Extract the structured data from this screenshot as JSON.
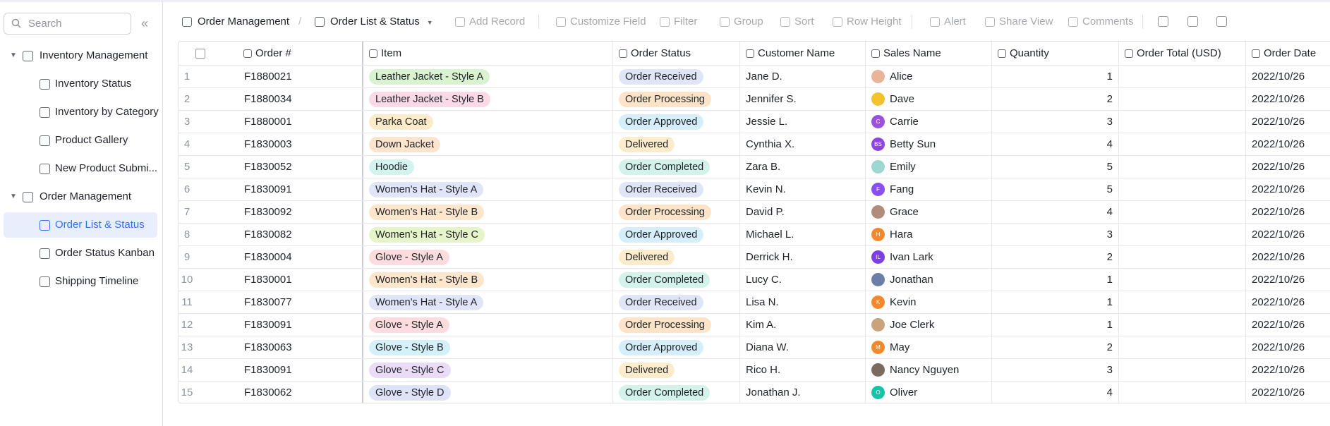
{
  "sidebar": {
    "search_placeholder": "Search",
    "tree": [
      {
        "label": "Inventory Management",
        "children": [
          {
            "label": "Inventory Status"
          },
          {
            "label": "Inventory by Category"
          },
          {
            "label": "Product Gallery"
          },
          {
            "label": "New Product Submi..."
          }
        ]
      },
      {
        "label": "Order Management",
        "children": [
          {
            "label": "Order List & Status",
            "active": true
          },
          {
            "label": "Order Status Kanban"
          },
          {
            "label": "Shipping Timeline"
          }
        ]
      }
    ]
  },
  "toolbar": {
    "breadcrumb": [
      "Order Management",
      "/"
    ],
    "view": "Order List & Status",
    "actions": [
      "Add Record",
      "Customize Field",
      "Filter",
      "Group",
      "Sort",
      "Row Height",
      "Alert",
      "Share View",
      "Comments"
    ]
  },
  "table": {
    "columns": [
      "Order #",
      "Item",
      "Order Status",
      "Customer Name",
      "Sales Name",
      "Quantity",
      "Order Total (USD)",
      "Order Date"
    ],
    "rows": [
      {
        "no": 1,
        "order": "F1880021",
        "item": {
          "label": "Leather Jacket - Style A",
          "color": "#d9f2d0"
        },
        "status": {
          "label": "Order Received",
          "color": "#e1e6f6"
        },
        "customer": "Jane D.",
        "sales": {
          "name": "Alice",
          "color": "#e8b49a"
        },
        "quantity": 1,
        "date": "2022/10/26"
      },
      {
        "no": 2,
        "order": "F1880034",
        "item": {
          "label": "Leather Jacket - Style B",
          "color": "#fbd9e6"
        },
        "status": {
          "label": "Order Processing",
          "color": "#fde3c8"
        },
        "customer": "Jennifer S.",
        "sales": {
          "name": "Dave",
          "color": "#f2c230"
        },
        "quantity": 2,
        "date": "2022/10/26"
      },
      {
        "no": 3,
        "order": "F1880001",
        "item": {
          "label": "Parka Coat",
          "color": "#fcebc9"
        },
        "status": {
          "label": "Order Approved",
          "color": "#d6eefa"
        },
        "customer": "Jessie L.",
        "sales": {
          "name": "Carrie",
          "avatar": "C",
          "color": "#9b51e0"
        },
        "quantity": 3,
        "date": "2022/10/26"
      },
      {
        "no": 4,
        "order": "F1830003",
        "item": {
          "label": "Down Jacket",
          "color": "#fde4cc"
        },
        "status": {
          "label": "Delivered",
          "color": "#fdeccc"
        },
        "customer": "Cynthia X.",
        "sales": {
          "name": "Betty Sun",
          "avatar": "BS",
          "color": "#8e44e0"
        },
        "quantity": 4,
        "date": "2022/10/26"
      },
      {
        "no": 5,
        "order": "F1830052",
        "item": {
          "label": "Hoodie",
          "color": "#d3f3ee"
        },
        "status": {
          "label": "Order Completed",
          "color": "#d2f2ea"
        },
        "customer": "Zara B.",
        "sales": {
          "name": "Emily",
          "color": "#9ed6d0"
        },
        "quantity": 5,
        "date": "2022/10/26"
      },
      {
        "no": 6,
        "order": "F1830091",
        "item": {
          "label": "Women's Hat - Style A",
          "color": "#e0e5f8"
        },
        "status": {
          "label": "Order Received",
          "color": "#e1e6f6"
        },
        "customer": "Kevin N.",
        "sales": {
          "name": "Fang",
          "avatar": "F",
          "color": "#8a4ff0"
        },
        "quantity": 5,
        "date": "2022/10/26"
      },
      {
        "no": 7,
        "order": "F1830092",
        "item": {
          "label": "Women's Hat - Style B",
          "color": "#fde6cc"
        },
        "status": {
          "label": "Order Processing",
          "color": "#fde3c8"
        },
        "customer": "David P.",
        "sales": {
          "name": "Grace",
          "color": "#b08c7a"
        },
        "quantity": 4,
        "date": "2022/10/26"
      },
      {
        "no": 8,
        "order": "F1830082",
        "item": {
          "label": "Women's Hat - Style C",
          "color": "#e6f5c9"
        },
        "status": {
          "label": "Order Approved",
          "color": "#d6eefa"
        },
        "customer": "Michael L.",
        "sales": {
          "name": "Hara",
          "avatar": "H",
          "color": "#f5892a"
        },
        "quantity": 3,
        "date": "2022/10/26"
      },
      {
        "no": 9,
        "order": "F1830004",
        "item": {
          "label": "Glove - Style A",
          "color": "#fcdcdc"
        },
        "status": {
          "label": "Delivered",
          "color": "#fdeccc"
        },
        "customer": "Derrick H.",
        "sales": {
          "name": "Ivan Lark",
          "avatar": "IL",
          "color": "#7b3fe4"
        },
        "quantity": 2,
        "date": "2022/10/26"
      },
      {
        "no": 10,
        "order": "F1830001",
        "item": {
          "label": "Women's Hat - Style B",
          "color": "#fde6cc"
        },
        "status": {
          "label": "Order Completed",
          "color": "#d2f2ea"
        },
        "customer": "Lucy C.",
        "sales": {
          "name": "Jonathan",
          "color": "#6a7fa8"
        },
        "quantity": 1,
        "date": "2022/10/26"
      },
      {
        "no": 11,
        "order": "F1830077",
        "item": {
          "label": "Women's Hat - Style A",
          "color": "#e0e5f8"
        },
        "status": {
          "label": "Order Received",
          "color": "#e1e6f6"
        },
        "customer": "Lisa N.",
        "sales": {
          "name": "Kevin",
          "avatar": "K",
          "color": "#f5892a"
        },
        "quantity": 1,
        "date": "2022/10/26"
      },
      {
        "no": 12,
        "order": "F1830091",
        "item": {
          "label": "Glove - Style A",
          "color": "#fcdcdc"
        },
        "status": {
          "label": "Order Processing",
          "color": "#fde3c8"
        },
        "customer": "Kim A.",
        "sales": {
          "name": "Joe Clerk",
          "color": "#c9a27e"
        },
        "quantity": 1,
        "date": "2022/10/26"
      },
      {
        "no": 13,
        "order": "F1830063",
        "item": {
          "label": "Glove - Style B",
          "color": "#d4f0f8"
        },
        "status": {
          "label": "Order Approved",
          "color": "#d6eefa"
        },
        "customer": "Diana W.",
        "sales": {
          "name": "May",
          "avatar": "M",
          "color": "#f5892a"
        },
        "quantity": 2,
        "date": "2022/10/26"
      },
      {
        "no": 14,
        "order": "F1830091",
        "item": {
          "label": "Glove - Style C",
          "color": "#eadcf7"
        },
        "status": {
          "label": "Delivered",
          "color": "#fdeccc"
        },
        "customer": "Rico H.",
        "sales": {
          "name": "Nancy Nguyen",
          "color": "#7a6a60"
        },
        "quantity": 3,
        "date": "2022/10/26"
      },
      {
        "no": 15,
        "order": "F1830062",
        "item": {
          "label": "Glove - Style D",
          "color": "#dfe3f8"
        },
        "status": {
          "label": "Order Completed",
          "color": "#d2f2ea"
        },
        "customer": "Jonathan J.",
        "sales": {
          "name": "Oliver",
          "avatar": "O",
          "color": "#14c3a8"
        },
        "quantity": 4,
        "date": "2022/10/26"
      }
    ]
  }
}
